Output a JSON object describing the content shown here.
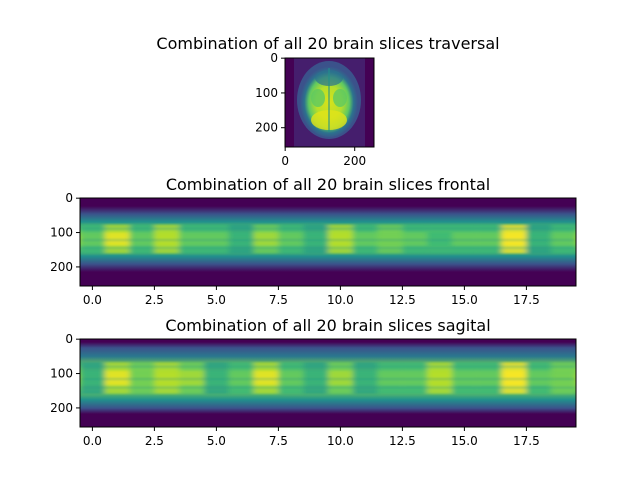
{
  "palette": {
    "viridis_dark": "#440154",
    "viridis_mid": "#21918c",
    "viridis_light": "#fde725"
  },
  "chart_data": [
    {
      "type": "heatmap",
      "title": "Combination of all 20 brain slices traversal",
      "xlim": [
        -0.5,
        255.5
      ],
      "ylim": [
        255.5,
        -0.5
      ],
      "xticks": [
        0,
        200
      ],
      "xtick_labels": [
        "0",
        "200"
      ],
      "yticks": [
        0,
        100,
        200
      ],
      "ytick_labels": [
        "0",
        "100",
        "200"
      ],
      "image": "axial brain MRI slice (skull outline, viridis colormap)"
    },
    {
      "type": "heatmap",
      "title": "Combination of all 20 brain slices frontal",
      "xlim": [
        -0.5,
        19.5
      ],
      "ylim": [
        255.5,
        -0.5
      ],
      "xticks": [
        0,
        2.5,
        5,
        7.5,
        10,
        12.5,
        15,
        17.5
      ],
      "xtick_labels": [
        "0.0",
        "2.5",
        "5.0",
        "7.5",
        "10.0",
        "12.5",
        "15.0",
        "17.5"
      ],
      "yticks": [
        0,
        100,
        200
      ],
      "ytick_labels": [
        "0",
        "100",
        "200"
      ],
      "column_intensity": [
        0.65,
        0.9,
        0.7,
        0.85,
        0.72,
        0.65,
        0.6,
        0.8,
        0.7,
        0.55,
        0.85,
        0.7,
        0.75,
        0.68,
        0.62,
        0.7,
        0.72,
        0.95,
        0.6,
        0.7
      ]
    },
    {
      "type": "heatmap",
      "title": "Combination of all 20 brain slices sagital",
      "xlim": [
        -0.5,
        19.5
      ],
      "ylim": [
        255.5,
        -0.5
      ],
      "xticks": [
        0,
        2.5,
        5,
        7.5,
        10,
        12.5,
        15,
        17.5
      ],
      "xtick_labels": [
        "0.0",
        "2.5",
        "5.0",
        "7.5",
        "10.0",
        "12.5",
        "15.0",
        "17.5"
      ],
      "yticks": [
        0,
        100,
        200
      ],
      "ytick_labels": [
        "0",
        "100",
        "200"
      ],
      "column_intensity": [
        0.6,
        0.9,
        0.75,
        0.85,
        0.8,
        0.6,
        0.7,
        0.9,
        0.7,
        0.55,
        0.8,
        0.6,
        0.72,
        0.7,
        0.85,
        0.65,
        0.7,
        0.95,
        0.7,
        0.75
      ]
    }
  ]
}
